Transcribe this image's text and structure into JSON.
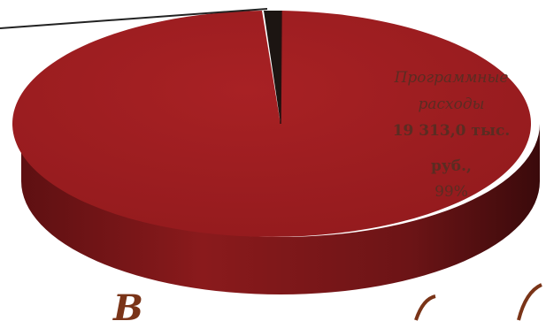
{
  "chart_data": {
    "type": "pie",
    "style": "3d",
    "slices": [
      {
        "label": "Программные расходы",
        "value_text": "19 313,0 тыс. руб.,",
        "percent": 99,
        "percent_text": "99%",
        "color": "#9e1c1f"
      },
      {
        "label": "",
        "percent": 1,
        "color": "#1c1512"
      }
    ],
    "title": "В"
  }
}
